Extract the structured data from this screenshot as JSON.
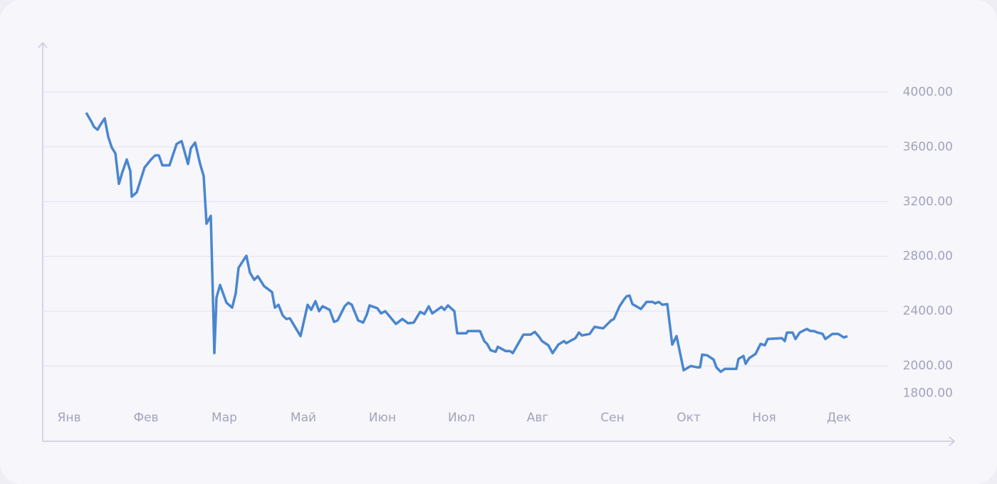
{
  "chart_data": {
    "type": "line",
    "x": [
      24,
      31,
      35,
      40,
      44,
      50,
      55,
      60,
      65,
      70,
      75,
      81,
      86,
      88,
      95,
      106,
      115,
      121,
      126,
      131,
      141,
      151,
      158,
      167,
      171,
      177,
      184,
      189,
      193,
      199,
      204,
      207,
      212,
      221,
      229,
      234,
      238,
      249,
      254,
      260,
      265,
      274,
      285,
      289,
      294,
      300,
      305,
      310,
      325,
      335,
      340,
      346,
      351,
      356,
      366,
      372,
      377,
      387,
      392,
      397,
      406,
      413,
      418,
      422,
      433,
      438,
      444,
      459,
      468,
      476,
      484,
      493,
      499,
      505,
      510,
      523,
      527,
      532,
      541,
      545,
      558,
      560,
      577,
      583,
      587,
      592,
      599,
      602,
      613,
      619,
      623,
      638,
      648,
      654,
      660,
      664,
      673,
      679,
      687,
      695,
      698,
      711,
      716,
      720,
      731,
      738,
      743,
      750,
      761,
      765,
      773,
      779,
      783,
      787,
      791,
      803,
      811,
      819,
      823,
      828,
      833,
      840,
      847,
      853,
      863,
      873,
      882,
      886,
      889,
      896,
      905,
      909,
      915,
      921,
      937,
      940,
      947,
      950,
      955,
      964,
      971,
      977,
      981,
      1001,
      1005,
      1008,
      1016,
      1020,
      1026,
      1036,
      1041,
      1046,
      1051,
      1058,
      1062,
      1072,
      1080,
      1088,
      1093
    ],
    "series": [
      {
        "color": "#4a86cf",
        "values": [
          3849,
          3787,
          3746,
          3725,
          3761,
          3808,
          3673,
          3595,
          3553,
          3330,
          3418,
          3507,
          3423,
          3236,
          3268,
          3449,
          3507,
          3538,
          3538,
          3465,
          3465,
          3621,
          3642,
          3475,
          3590,
          3631,
          3475,
          3387,
          3039,
          3096,
          2094,
          2499,
          2592,
          2462,
          2426,
          2530,
          2717,
          2805,
          2681,
          2629,
          2655,
          2582,
          2540,
          2426,
          2447,
          2369,
          2343,
          2348,
          2218,
          2447,
          2410,
          2473,
          2400,
          2436,
          2410,
          2322,
          2332,
          2436,
          2462,
          2447,
          2332,
          2317,
          2374,
          2442,
          2421,
          2384,
          2400,
          2307,
          2343,
          2312,
          2317,
          2395,
          2379,
          2436,
          2384,
          2431,
          2410,
          2442,
          2400,
          2239,
          2239,
          2255,
          2255,
          2182,
          2161,
          2114,
          2104,
          2140,
          2109,
          2109,
          2094,
          2229,
          2229,
          2249,
          2213,
          2182,
          2151,
          2094,
          2156,
          2182,
          2166,
          2203,
          2244,
          2223,
          2234,
          2286,
          2281,
          2275,
          2332,
          2343,
          2436,
          2483,
          2509,
          2514,
          2452,
          2416,
          2468,
          2468,
          2457,
          2468,
          2447,
          2452,
          2156,
          2218,
          1969,
          2000,
          1990,
          1990,
          2083,
          2078,
          2047,
          1990,
          1958,
          1979,
          1979,
          2052,
          2073,
          2016,
          2057,
          2088,
          2161,
          2151,
          2197,
          2203,
          2182,
          2244,
          2244,
          2197,
          2244,
          2270,
          2255,
          2255,
          2244,
          2234,
          2197,
          2234,
          2234,
          2208,
          2218
        ]
      }
    ],
    "xlim": [
      -37,
      1243
    ],
    "xticks": [
      {
        "value": 0,
        "label": "Янв"
      },
      {
        "value": 108,
        "label": "Фев"
      },
      {
        "value": 218,
        "label": "Мар"
      },
      {
        "value": 329,
        "label": "Май"
      },
      {
        "value": 440,
        "label": "Июн"
      },
      {
        "value": 551,
        "label": "Июл"
      },
      {
        "value": 658,
        "label": "Авг"
      },
      {
        "value": 763,
        "label": "Сен"
      },
      {
        "value": 870,
        "label": "Окт"
      },
      {
        "value": 976,
        "label": "Ноя"
      },
      {
        "value": 1081,
        "label": "Дек"
      }
    ],
    "ylim": [
      1450,
      4350
    ],
    "yticks": [
      {
        "value": 1800,
        "label": "1800.00"
      },
      {
        "value": 2000,
        "label": "2000.00"
      },
      {
        "value": 2400,
        "label": "2400.00"
      },
      {
        "value": 2800,
        "label": "2800.00"
      },
      {
        "value": 3200,
        "label": "3200.00"
      },
      {
        "value": 3600,
        "label": "3600.00"
      },
      {
        "value": 4000,
        "label": "4000.00"
      }
    ],
    "grid": true
  }
}
